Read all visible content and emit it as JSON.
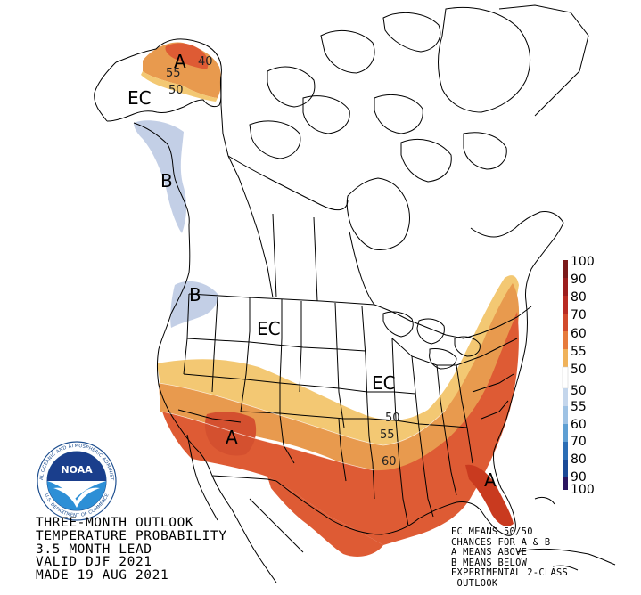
{
  "map": {
    "region_labels": [
      {
        "id": "ec-alaska",
        "text": "EC"
      },
      {
        "id": "a-alaska",
        "text": "A"
      },
      {
        "id": "b-bc",
        "text": "B"
      },
      {
        "id": "b-wa",
        "text": "B"
      },
      {
        "id": "ec-plains",
        "text": "EC"
      },
      {
        "id": "ec-midwest",
        "text": "EC"
      },
      {
        "id": "a-southwest",
        "text": "A"
      },
      {
        "id": "a-florida",
        "text": "A"
      }
    ],
    "contour_labels": [
      {
        "id": "ak-40",
        "text": "40"
      },
      {
        "id": "ak-55",
        "text": "55"
      },
      {
        "id": "ak-50",
        "text": "50"
      },
      {
        "id": "us-50",
        "text": "50"
      },
      {
        "id": "us-55",
        "text": "55"
      },
      {
        "id": "us-60",
        "text": "60"
      }
    ],
    "colors": {
      "above_40_50": "#f3c873",
      "above_50_60": "#e89a4e",
      "above_60_70": "#de5b34",
      "above_70_80": "#c93a1f",
      "below_33_40": "#c3cfe6",
      "land_outline": "#000000",
      "water": "#ffffff"
    }
  },
  "scale": {
    "labels": [
      "100",
      "90",
      "80",
      "70",
      "60",
      "55",
      "50",
      "50",
      "55",
      "60",
      "70",
      "80",
      "90",
      "100"
    ],
    "above_colors": [
      "#7b1a1a",
      "#9c1e1e",
      "#b92b23",
      "#d24a2c",
      "#e77b3c",
      "#f0b25a",
      "#fbdba0"
    ],
    "below_colors": [
      "#c4d6ec",
      "#9ec2e4",
      "#5e9fd3",
      "#2c6eb5",
      "#1b4a97",
      "#142d74",
      "#2b1561"
    ]
  },
  "title": {
    "lines": [
      "THREE-MONTH OUTLOOK",
      "TEMPERATURE PROBABILITY",
      "3.5 MONTH LEAD",
      "VALID DJF 2021",
      "MADE 19 AUG 2021"
    ]
  },
  "notes": {
    "lines": [
      "EC MEANS 50/50",
      "CHANCES FOR A & B",
      "A MEANS ABOVE",
      "B MEANS BELOW",
      "EXPERIMENTAL 2-CLASS",
      " OUTLOOK"
    ]
  },
  "logo": {
    "text": "NOAA",
    "ring_text": "NATIONAL OCEANIC AND ATMOSPHERIC ADMINISTRATION",
    "ring_text_bottom": "U.S. DEPARTMENT OF COMMERCE"
  }
}
